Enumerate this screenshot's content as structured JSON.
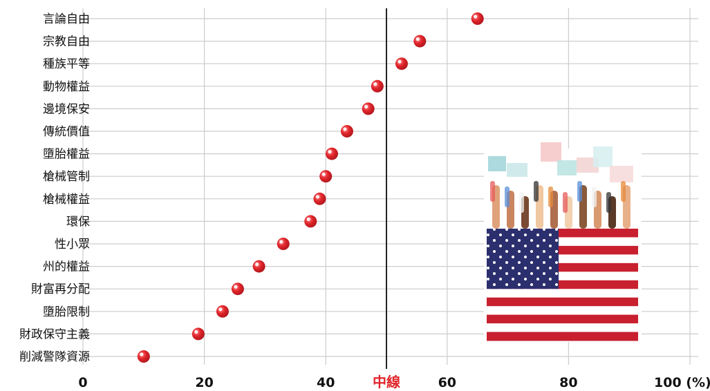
{
  "chart_data": {
    "type": "scatter",
    "categories": [
      "言論自由",
      "宗教自由",
      "種族平等",
      "動物權益",
      "邊境保安",
      "傳統價值",
      "墮胎權益",
      "槍械管制",
      "槍械權益",
      "環保",
      "性小眾",
      "州的權益",
      "財富再分配",
      "墮胎限制",
      "財政保守主義",
      "削減警隊資源"
    ],
    "values": [
      65,
      55.5,
      52.5,
      48.5,
      47,
      43.5,
      41,
      40,
      39,
      37.5,
      33,
      29,
      25.5,
      23,
      19,
      10
    ],
    "x_ticks": [
      "0",
      "20",
      "40",
      "60",
      "80",
      "100 (%)"
    ],
    "xlim": [
      0,
      100
    ],
    "midline": {
      "value": 50,
      "label": "中線"
    },
    "grid": true,
    "colors": {
      "dot": "#e0252b",
      "grid": "#cccccc",
      "midline": "#222222"
    }
  },
  "illustration": {
    "icon": "us-flag-with-raised-hands-icon"
  }
}
